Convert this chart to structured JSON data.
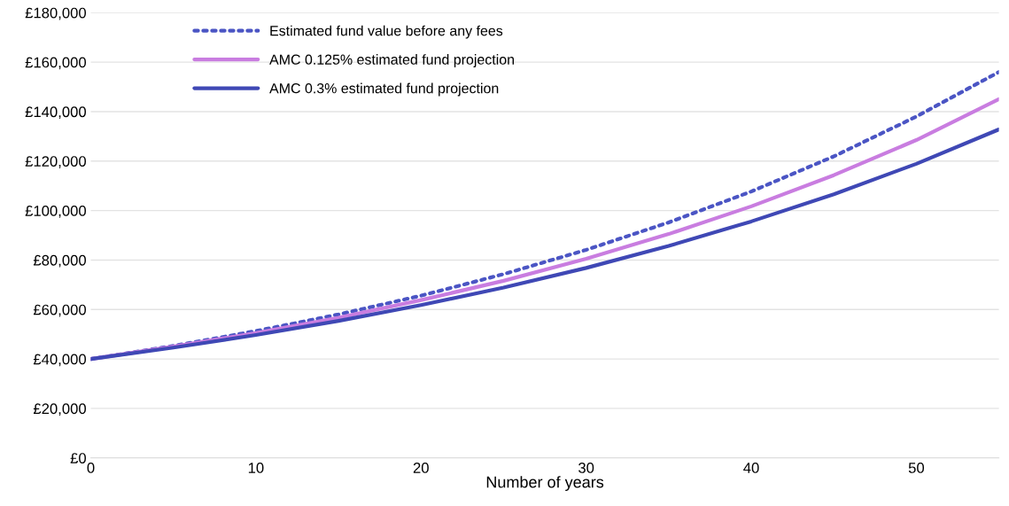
{
  "chart_data": {
    "type": "line",
    "xlabel": "Number of years",
    "x": [
      0,
      5,
      10,
      15,
      20,
      25,
      30,
      35,
      40,
      45,
      50,
      55
    ],
    "series": [
      {
        "name": "Estimated fund value before any fees",
        "color": "#4b55c4",
        "line_style": "dotted",
        "values": [
          40000,
          45300,
          51300,
          58000,
          65600,
          74300,
          84100,
          95200,
          107700,
          121900,
          138000,
          156000
        ]
      },
      {
        "name": "AMC 0.125% estimated fund projection",
        "color": "#c97de0",
        "line_style": "solid",
        "values": [
          40000,
          45000,
          50500,
          56700,
          63800,
          71600,
          80500,
          90500,
          101700,
          114300,
          128500,
          145000
        ]
      },
      {
        "name": "AMC 0.3% estimated fund projection",
        "color": "#3f48b5",
        "line_style": "solid",
        "values": [
          40000,
          44600,
          49700,
          55400,
          61800,
          68900,
          76800,
          85700,
          95600,
          106600,
          118900,
          132800
        ]
      }
    ],
    "xlim": [
      0,
      55
    ],
    "xticks": [
      0,
      10,
      20,
      30,
      40,
      50
    ],
    "ylim": [
      0,
      180000
    ],
    "yticks": [
      {
        "value": 0,
        "label": "£0"
      },
      {
        "value": 20000,
        "label": "£20,000"
      },
      {
        "value": 40000,
        "label": "£40,000"
      },
      {
        "value": 60000,
        "label": "£60,000"
      },
      {
        "value": 80000,
        "label": "£80,000"
      },
      {
        "value": 100000,
        "label": "£100,000"
      },
      {
        "value": 120000,
        "label": "£120,000"
      },
      {
        "value": 140000,
        "label": "£140,000"
      },
      {
        "value": 160000,
        "label": "£160,000"
      },
      {
        "value": 180000,
        "label": "£180,000"
      }
    ],
    "grid": "y",
    "legend": "top left"
  }
}
